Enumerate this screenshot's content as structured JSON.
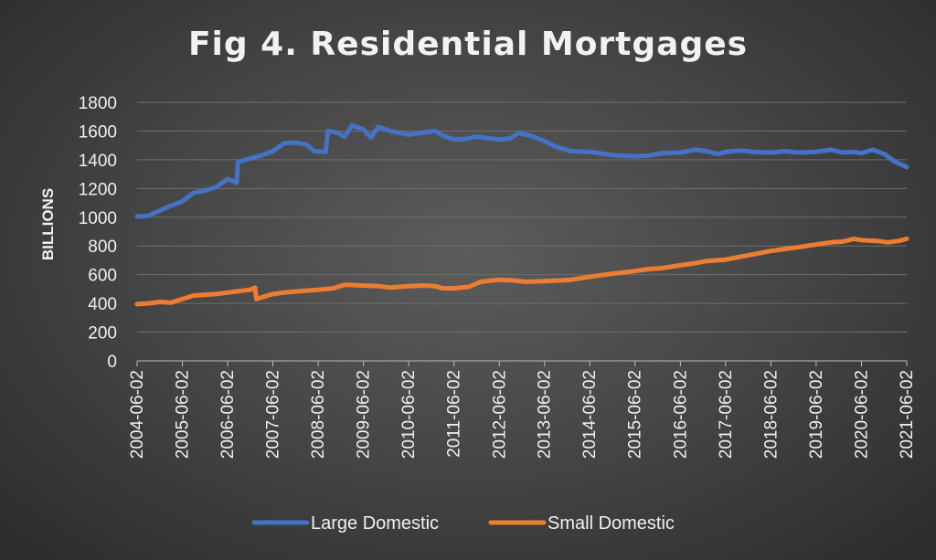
{
  "chart_data": {
    "type": "line",
    "title": "Fig 4. Residential Mortgages",
    "xlabel": "",
    "ylabel": "BILLIONS",
    "ylim": [
      0,
      1800
    ],
    "yticks": [
      0,
      200,
      400,
      600,
      800,
      1000,
      1200,
      1400,
      1600,
      1800
    ],
    "xlim": [
      "2004-06-02",
      "2021-06-02"
    ],
    "xticks": [
      "2004-06-02",
      "2005-06-02",
      "2006-06-02",
      "2007-06-02",
      "2008-06-02",
      "2009-06-02",
      "2010-06-02",
      "2011-06-02",
      "2012-06-02",
      "2013-06-02",
      "2014-06-02",
      "2015-06-02",
      "2016-06-02",
      "2017-06-02",
      "2018-06-02",
      "2019-06-02",
      "2020-06-02",
      "2021-06-02"
    ],
    "grid": true,
    "legend": "bottom",
    "series": [
      {
        "name": "Large Domestic",
        "color": "#4472c4",
        "points": [
          [
            "2004-06-02",
            1005
          ],
          [
            "2004-09-01",
            1010
          ],
          [
            "2004-12-01",
            1045
          ],
          [
            "2005-03-01",
            1080
          ],
          [
            "2005-06-02",
            1110
          ],
          [
            "2005-09-01",
            1170
          ],
          [
            "2005-12-01",
            1185
          ],
          [
            "2006-03-01",
            1210
          ],
          [
            "2006-06-02",
            1265
          ],
          [
            "2006-08-15",
            1240
          ],
          [
            "2006-08-25",
            1385
          ],
          [
            "2006-12-01",
            1410
          ],
          [
            "2007-03-01",
            1430
          ],
          [
            "2007-06-02",
            1460
          ],
          [
            "2007-09-01",
            1515
          ],
          [
            "2007-12-01",
            1520
          ],
          [
            "2008-03-01",
            1505
          ],
          [
            "2008-05-01",
            1460
          ],
          [
            "2008-08-01",
            1455
          ],
          [
            "2008-08-20",
            1600
          ],
          [
            "2008-11-01",
            1590
          ],
          [
            "2009-01-01",
            1560
          ],
          [
            "2009-03-01",
            1640
          ],
          [
            "2009-06-02",
            1610
          ],
          [
            "2009-08-01",
            1555
          ],
          [
            "2009-10-01",
            1630
          ],
          [
            "2010-01-01",
            1600
          ],
          [
            "2010-06-02",
            1575
          ],
          [
            "2010-10-01",
            1590
          ],
          [
            "2011-01-01",
            1600
          ],
          [
            "2011-03-01",
            1570
          ],
          [
            "2011-06-02",
            1540
          ],
          [
            "2011-09-01",
            1545
          ],
          [
            "2011-12-01",
            1560
          ],
          [
            "2012-03-01",
            1550
          ],
          [
            "2012-06-02",
            1540
          ],
          [
            "2012-09-01",
            1550
          ],
          [
            "2012-11-01",
            1585
          ],
          [
            "2013-02-01",
            1570
          ],
          [
            "2013-06-02",
            1530
          ],
          [
            "2013-09-01",
            1490
          ],
          [
            "2014-01-01",
            1460
          ],
          [
            "2014-06-02",
            1455
          ],
          [
            "2014-10-01",
            1440
          ],
          [
            "2015-01-01",
            1430
          ],
          [
            "2015-06-02",
            1425
          ],
          [
            "2015-10-01",
            1430
          ],
          [
            "2016-01-01",
            1445
          ],
          [
            "2016-06-02",
            1450
          ],
          [
            "2016-10-01",
            1470
          ],
          [
            "2017-01-01",
            1460
          ],
          [
            "2017-04-01",
            1440
          ],
          [
            "2017-06-02",
            1455
          ],
          [
            "2017-10-01",
            1465
          ],
          [
            "2018-01-01",
            1455
          ],
          [
            "2018-06-02",
            1450
          ],
          [
            "2018-10-01",
            1460
          ],
          [
            "2019-01-01",
            1450
          ],
          [
            "2019-06-02",
            1455
          ],
          [
            "2019-10-01",
            1470
          ],
          [
            "2020-01-01",
            1450
          ],
          [
            "2020-04-01",
            1455
          ],
          [
            "2020-06-02",
            1445
          ],
          [
            "2020-09-01",
            1470
          ],
          [
            "2020-12-01",
            1440
          ],
          [
            "2021-03-01",
            1385
          ],
          [
            "2021-06-02",
            1350
          ]
        ]
      },
      {
        "name": "Small Domestic",
        "color": "#ed7d31",
        "points": [
          [
            "2004-06-02",
            395
          ],
          [
            "2004-09-01",
            400
          ],
          [
            "2004-12-01",
            410
          ],
          [
            "2005-03-01",
            405
          ],
          [
            "2005-06-02",
            430
          ],
          [
            "2005-09-01",
            455
          ],
          [
            "2005-12-01",
            460
          ],
          [
            "2006-03-01",
            465
          ],
          [
            "2006-06-02",
            475
          ],
          [
            "2006-09-01",
            485
          ],
          [
            "2006-12-01",
            495
          ],
          [
            "2007-01-10",
            510
          ],
          [
            "2007-01-20",
            430
          ],
          [
            "2007-04-01",
            450
          ],
          [
            "2007-06-02",
            465
          ],
          [
            "2007-09-01",
            475
          ],
          [
            "2008-01-01",
            485
          ],
          [
            "2008-06-02",
            495
          ],
          [
            "2008-10-01",
            505
          ],
          [
            "2009-01-01",
            530
          ],
          [
            "2009-06-02",
            525
          ],
          [
            "2009-10-01",
            520
          ],
          [
            "2010-01-01",
            510
          ],
          [
            "2010-06-02",
            520
          ],
          [
            "2010-10-01",
            525
          ],
          [
            "2011-01-01",
            520
          ],
          [
            "2011-03-01",
            505
          ],
          [
            "2011-06-02",
            505
          ],
          [
            "2011-10-01",
            515
          ],
          [
            "2012-01-01",
            550
          ],
          [
            "2012-06-02",
            565
          ],
          [
            "2012-10-01",
            560
          ],
          [
            "2013-01-01",
            550
          ],
          [
            "2013-06-02",
            555
          ],
          [
            "2013-10-01",
            560
          ],
          [
            "2014-01-01",
            565
          ],
          [
            "2014-06-02",
            585
          ],
          [
            "2014-10-01",
            600
          ],
          [
            "2015-01-01",
            610
          ],
          [
            "2015-06-02",
            625
          ],
          [
            "2015-10-01",
            640
          ],
          [
            "2016-01-01",
            645
          ],
          [
            "2016-06-02",
            665
          ],
          [
            "2016-10-01",
            680
          ],
          [
            "2017-01-01",
            695
          ],
          [
            "2017-06-02",
            705
          ],
          [
            "2017-10-01",
            725
          ],
          [
            "2018-01-01",
            740
          ],
          [
            "2018-06-02",
            765
          ],
          [
            "2018-10-01",
            780
          ],
          [
            "2019-01-01",
            790
          ],
          [
            "2019-06-02",
            810
          ],
          [
            "2019-10-01",
            825
          ],
          [
            "2020-01-01",
            830
          ],
          [
            "2020-04-01",
            850
          ],
          [
            "2020-06-02",
            840
          ],
          [
            "2020-10-01",
            835
          ],
          [
            "2021-01-01",
            825
          ],
          [
            "2021-04-01",
            835
          ],
          [
            "2021-06-02",
            850
          ]
        ]
      }
    ]
  }
}
